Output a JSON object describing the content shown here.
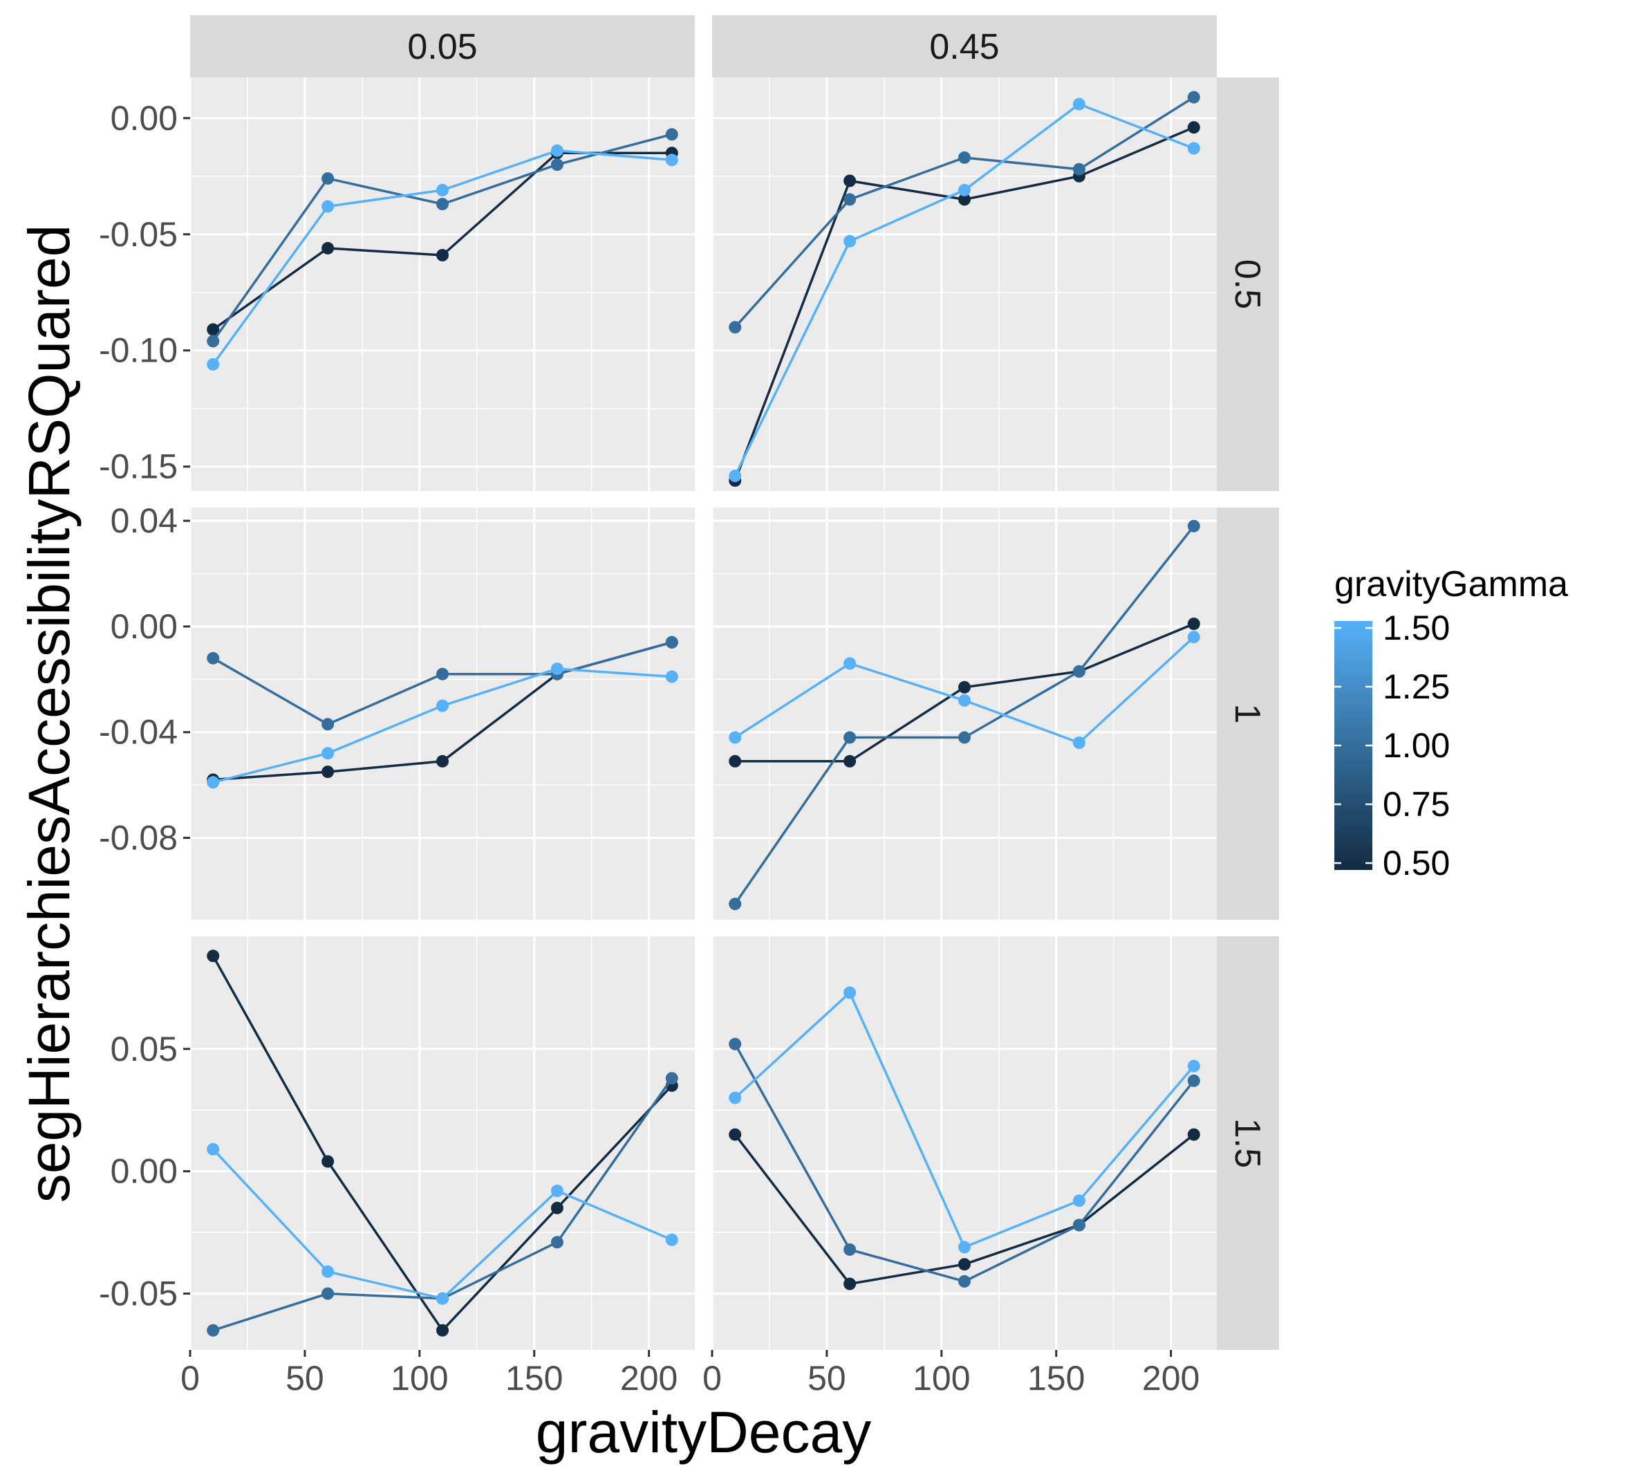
{
  "chart_data": {
    "type": "line",
    "facet_grid": true,
    "xlabel": "gravityDecay",
    "ylabel": "segHierarchiesAccessibilityRSQuared",
    "x": [
      10,
      60,
      110,
      160,
      210
    ],
    "xlim": [
      0,
      220
    ],
    "xticks": [
      0,
      50,
      100,
      150,
      200
    ],
    "col_facets": [
      "0.05",
      "0.45"
    ],
    "row_facets": [
      "0.5",
      "1",
      "1.5"
    ],
    "rows": [
      {
        "ylim": [
          -0.1605,
          0.0175
        ],
        "yticks": [
          0.0,
          -0.05,
          -0.1,
          -0.15
        ],
        "ytick_labels": [
          "0.00",
          "-0.05",
          "-0.10",
          "-0.15"
        ]
      },
      {
        "ylim": [
          -0.111,
          0.045
        ],
        "yticks": [
          0.04,
          0.0,
          -0.04,
          -0.08
        ],
        "ytick_labels": [
          "0.04",
          "0.00",
          "-0.04",
          "-0.08"
        ]
      },
      {
        "ylim": [
          -0.073,
          0.096
        ],
        "yticks": [
          0.05,
          0.0,
          -0.05
        ],
        "ytick_labels": [
          "0.05",
          "0.00",
          "-0.05"
        ]
      }
    ],
    "panels": [
      {
        "row": 0,
        "col": 0,
        "series": [
          {
            "gamma": 0.5,
            "values": [
              -0.091,
              -0.056,
              -0.059,
              -0.015,
              -0.015
            ]
          },
          {
            "gamma": 1.0,
            "values": [
              -0.096,
              -0.026,
              -0.037,
              -0.02,
              -0.007
            ]
          },
          {
            "gamma": 1.5,
            "values": [
              -0.106,
              -0.038,
              -0.031,
              -0.014,
              -0.018
            ]
          }
        ]
      },
      {
        "row": 0,
        "col": 1,
        "series": [
          {
            "gamma": 0.5,
            "values": [
              -0.156,
              -0.027,
              -0.035,
              -0.025,
              -0.004
            ]
          },
          {
            "gamma": 1.0,
            "values": [
              -0.09,
              -0.035,
              -0.017,
              -0.022,
              0.009
            ]
          },
          {
            "gamma": 1.5,
            "values": [
              -0.154,
              -0.053,
              -0.031,
              0.006,
              -0.013
            ]
          }
        ]
      },
      {
        "row": 1,
        "col": 0,
        "series": [
          {
            "gamma": 0.5,
            "values": [
              -0.058,
              -0.055,
              -0.051,
              -0.018,
              -0.006
            ]
          },
          {
            "gamma": 1.0,
            "values": [
              -0.012,
              -0.037,
              -0.018,
              -0.018,
              -0.006
            ]
          },
          {
            "gamma": 1.5,
            "values": [
              -0.059,
              -0.048,
              -0.03,
              -0.016,
              -0.019
            ]
          }
        ]
      },
      {
        "row": 1,
        "col": 1,
        "series": [
          {
            "gamma": 0.5,
            "values": [
              -0.051,
              -0.051,
              -0.023,
              -0.017,
              0.001
            ]
          },
          {
            "gamma": 1.0,
            "values": [
              -0.105,
              -0.042,
              -0.042,
              -0.017,
              0.038
            ]
          },
          {
            "gamma": 1.5,
            "values": [
              -0.042,
              -0.014,
              -0.028,
              -0.044,
              -0.004
            ]
          }
        ]
      },
      {
        "row": 2,
        "col": 0,
        "series": [
          {
            "gamma": 0.5,
            "values": [
              0.088,
              0.004,
              -0.065,
              -0.015,
              0.035
            ]
          },
          {
            "gamma": 1.0,
            "values": [
              -0.065,
              -0.05,
              -0.052,
              -0.029,
              0.038
            ]
          },
          {
            "gamma": 1.5,
            "values": [
              0.009,
              -0.041,
              -0.052,
              -0.008,
              -0.028
            ]
          }
        ]
      },
      {
        "row": 2,
        "col": 1,
        "series": [
          {
            "gamma": 0.5,
            "values": [
              0.015,
              -0.046,
              -0.038,
              -0.022,
              0.015
            ]
          },
          {
            "gamma": 1.0,
            "values": [
              0.052,
              -0.032,
              -0.045,
              -0.022,
              0.037
            ]
          },
          {
            "gamma": 1.5,
            "values": [
              0.03,
              0.073,
              -0.031,
              -0.012,
              0.043
            ]
          }
        ]
      }
    ],
    "legend": {
      "title": "gravityGamma",
      "placement": "right",
      "breaks": [
        1.5,
        1.25,
        1.0,
        0.75,
        0.5
      ],
      "labels": [
        "1.50",
        "1.25",
        "1.00",
        "0.75",
        "0.50"
      ],
      "color_low": "#132b43",
      "color_high": "#56b1f7",
      "limits": [
        0.5,
        1.5
      ]
    },
    "theme": {
      "panel_background": "#ebebeb",
      "strip_background": "#d9d9d9",
      "grid_color": "#ffffff"
    }
  }
}
